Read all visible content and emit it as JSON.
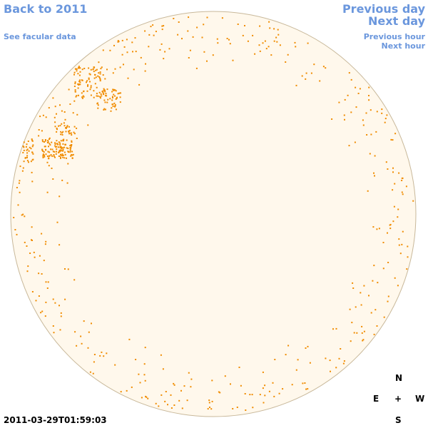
{
  "header": {
    "back": "Back to 2011",
    "facular": "See facular data",
    "previous_day": "Previous day",
    "next_day": "Next day",
    "previous_hour": "Previous hour",
    "next_hour": "Next hour"
  },
  "compass": {
    "north": "N",
    "east": "E",
    "center": "+",
    "west": "W",
    "south": "S"
  },
  "timestamp": "2011-03-29T01:59:03"
}
